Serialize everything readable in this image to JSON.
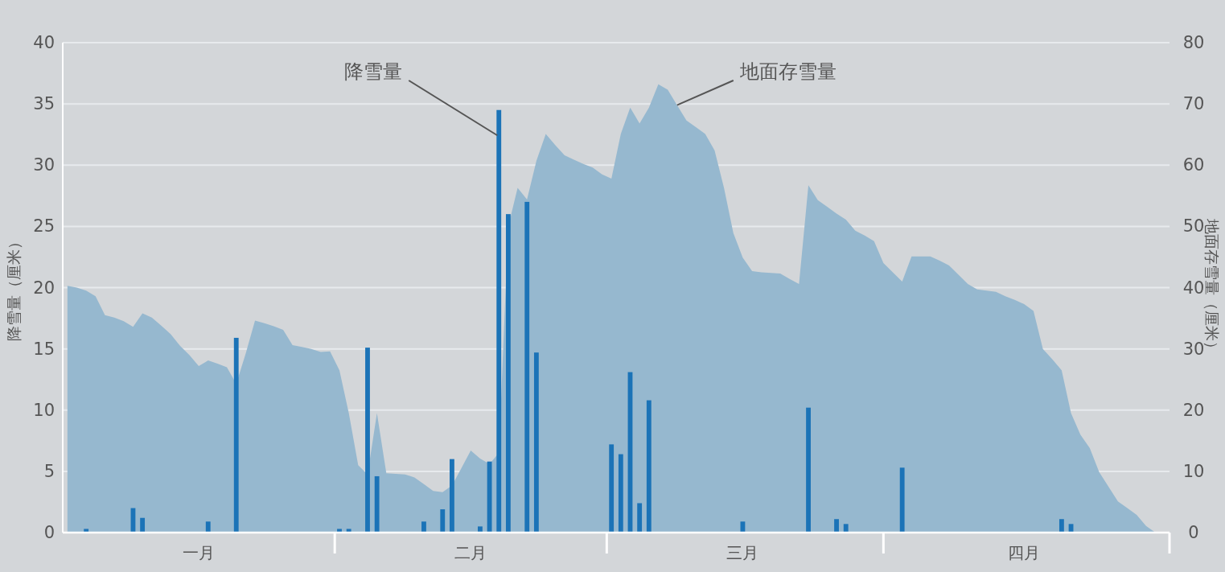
{
  "chart_data": {
    "type": "bar",
    "ylabel": "降雪量（厘米）",
    "y2label": "地面存雪量（厘米）",
    "grid": "y",
    "categories": [
      null,
      null,
      null,
      null,
      null,
      null,
      null,
      null,
      null,
      null,
      null,
      null,
      null,
      null,
      "一月",
      null,
      null,
      null,
      null,
      null,
      null,
      null,
      null,
      null,
      null,
      null,
      null,
      null,
      null,
      null,
      null,
      null,
      null,
      null,
      null,
      null,
      null,
      null,
      null,
      null,
      null,
      null,
      null,
      "二月",
      null,
      null,
      null,
      null,
      null,
      null,
      null,
      null,
      null,
      null,
      null,
      null,
      null,
      null,
      null,
      null,
      null,
      null,
      null,
      null,
      null,
      null,
      null,
      null,
      null,
      null,
      null,
      null,
      "三月",
      null,
      null,
      null,
      null,
      null,
      null,
      null,
      null,
      null,
      null,
      null,
      null,
      null,
      null,
      null,
      null,
      null,
      null,
      null,
      null,
      null,
      null,
      null,
      null,
      null,
      null,
      null,
      null,
      null,
      "四月",
      null,
      null,
      null,
      null,
      null,
      null,
      null,
      null,
      null,
      null,
      null,
      null,
      null,
      null,
      null
    ],
    "ylim": [
      0,
      40
    ],
    "yticks": [
      0,
      5,
      10,
      15,
      20,
      25,
      30,
      35,
      40
    ],
    "y2lim": [
      0,
      80
    ],
    "y2ticks": [
      0,
      10,
      20,
      30,
      40,
      50,
      60,
      70,
      80
    ],
    "series": [
      {
        "name": "地面存雪量",
        "type": "area",
        "axis": "y2",
        "color": "#96b8cf",
        "values": [
          40.3,
          40.0,
          39.5,
          38.6,
          35.5,
          35.1,
          34.5,
          33.6,
          35.8,
          35.1,
          33.8,
          32.4,
          30.5,
          29.0,
          27.2,
          28.1,
          27.6,
          27.0,
          24.3,
          29.2,
          34.6,
          34.2,
          33.7,
          33.1,
          30.6,
          30.3,
          30.0,
          29.5,
          29.6,
          26.5,
          19.5,
          11.0,
          9.5,
          19.5,
          9.7,
          9.6,
          9.5,
          9.0,
          7.9,
          6.8,
          6.6,
          7.7,
          10.5,
          13.4,
          12.1,
          11.2,
          13.0,
          50,
          56.3,
          54.4,
          60.7,
          65.1,
          63.3,
          61.6,
          60.9,
          60.2,
          59.6,
          58.5,
          57.8,
          65.1,
          69.4,
          66.8,
          69.4,
          73.2,
          72.3,
          69.8,
          67.3,
          66.2,
          65.1,
          62.4,
          56.3,
          48.9,
          44.9,
          42.7,
          42.5,
          42.4,
          42.3,
          41.4,
          40.6,
          56.7,
          54.3,
          53.2,
          52.1,
          51.1,
          49.3,
          48.5,
          47.6,
          44.0,
          42.5,
          41.0,
          45.1,
          45.1,
          45.1,
          44.4,
          43.6,
          42.1,
          40.6,
          39.7,
          39.5,
          39.3,
          38.6,
          38.0,
          37.3,
          36.2,
          30.0,
          28.3,
          26.5,
          19.5,
          16.0,
          13.8,
          9.9,
          7.5,
          5.1,
          4.0,
          2.9,
          1.1,
          0,
          null
        ]
      },
      {
        "name": "降雪量",
        "color": "#1b73b7",
        "values": [
          null,
          null,
          0.3,
          null,
          null,
          null,
          null,
          2.0,
          1.2,
          null,
          null,
          null,
          null,
          null,
          null,
          0.9,
          null,
          null,
          15.9,
          null,
          null,
          null,
          null,
          null,
          null,
          null,
          null,
          null,
          null,
          0.3,
          0.3,
          null,
          15.1,
          4.6,
          null,
          null,
          null,
          null,
          0.9,
          null,
          1.9,
          6.0,
          null,
          null,
          0.5,
          5.8,
          34.5,
          26.0,
          null,
          27.0,
          14.7,
          null,
          null,
          null,
          null,
          null,
          null,
          null,
          7.2,
          6.4,
          13.1,
          2.4,
          10.8,
          null,
          null,
          null,
          null,
          null,
          null,
          null,
          null,
          null,
          0.9,
          null,
          null,
          null,
          null,
          null,
          null,
          10.2,
          null,
          null,
          1.1,
          0.7,
          null,
          null,
          null,
          null,
          null,
          5.3,
          null,
          null,
          null,
          null,
          null,
          null,
          null,
          null,
          null,
          null,
          null,
          null,
          null,
          null,
          null,
          null,
          1.1,
          0.7,
          null,
          null,
          null,
          null,
          null,
          null,
          null,
          null,
          null,
          null
        ]
      }
    ]
  }
}
